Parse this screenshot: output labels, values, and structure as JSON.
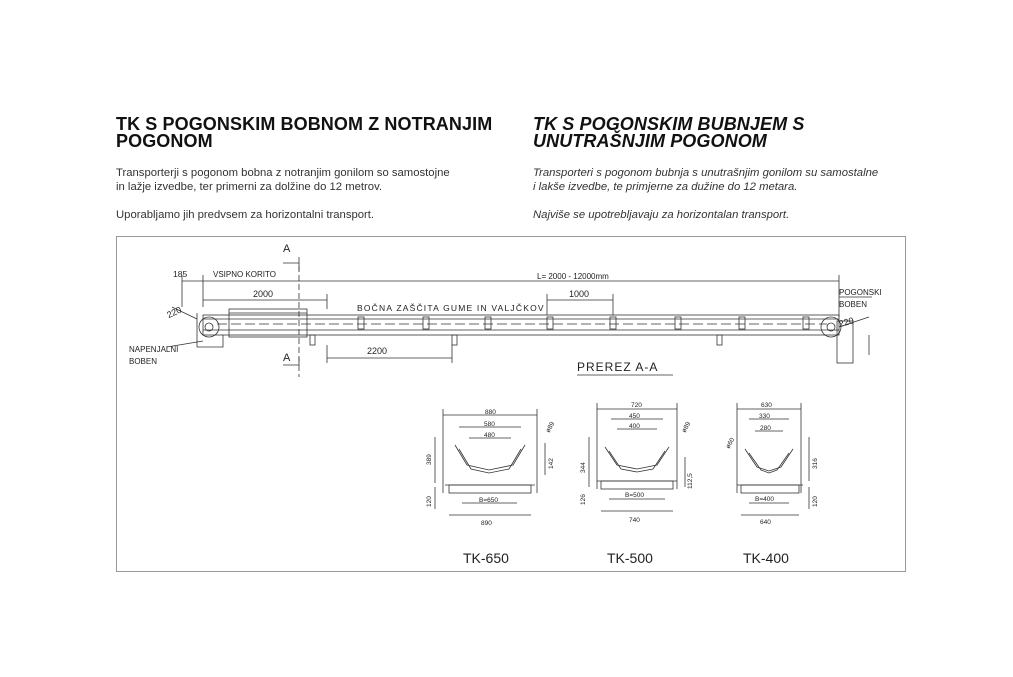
{
  "left": {
    "title_line1": "TK S POGONSKIM BOBNOM Z NOTRANJIM",
    "title_line2": "POGONOM",
    "para1_line1": "Transporterji s pogonom bobna z notranjim gonilom so samostojne",
    "para1_line2": "in lažje izvedbe, ter primerni za dolžine do 12 metrov.",
    "para2": "Uporabljamo jih predvsem za horizontalni transport."
  },
  "right": {
    "title_line1": "TK S POGONSKIM BUBNJEM S",
    "title_line2": "UNUTRAŠNJIM POGONOM",
    "para1_line1": "Transporteri s pogonom bubnja s unutrašnjim gonilom su samostalne",
    "para1_line2": "i lakše izvedbe, te primjerne za dužine do 12 metara.",
    "para2": "Najviše se upotrebljavaju za horizontalan transport."
  },
  "drawing": {
    "section_mark": "A",
    "dim_185": "185",
    "vsipno_korito": "VSIPNO KORITO",
    "length_label": "L= 2000 - 12000mm",
    "dim_2000": "2000",
    "dim_1000": "1000",
    "dim_2200": "2200",
    "dim_220": "220",
    "side_guard": "BOČNA ZAŠČITA GUME IN VALJČKOV",
    "pogonski": "POGONSKI",
    "boben": "BOBEN",
    "napenjalni": "NAPENJALNI",
    "boben2": "BOBEN",
    "prerez": "PREREZ A-A",
    "tk650": {
      "label": "TK-650",
      "d_top": "880",
      "d_mid": "580",
      "d_inner": "480",
      "d_bw": "B=650",
      "d_bottom": "890",
      "d_height": "389",
      "d_base": "120",
      "d_side": "142",
      "d_diam": "ø89"
    },
    "tk500": {
      "label": "TK-500",
      "d_top": "720",
      "d_mid": "450",
      "d_inner": "400",
      "d_bw": "B=500",
      "d_bottom": "740",
      "d_height": "344",
      "d_base": "126",
      "d_side": "112,5",
      "d_diam": "ø89"
    },
    "tk400": {
      "label": "TK-400",
      "d_top": "630",
      "d_mid": "330",
      "d_inner": "280",
      "d_bw": "B=400",
      "d_bottom": "640",
      "d_height": "316",
      "d_base": "120",
      "d_diam": "ø60"
    }
  }
}
